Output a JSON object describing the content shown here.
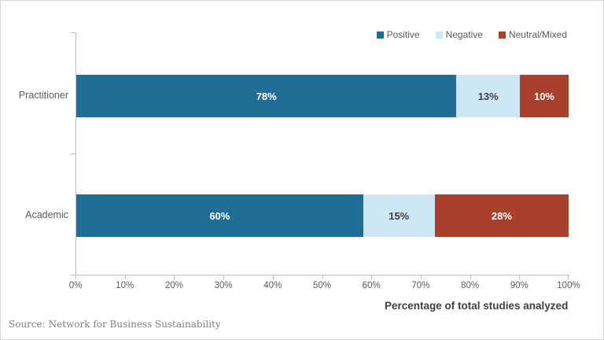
{
  "chart_data": {
    "type": "bar",
    "orientation": "horizontal",
    "stacked": true,
    "normalized_to_100_percent_width": true,
    "categories": [
      "Practitioner",
      "Academic"
    ],
    "series": [
      {
        "name": "Positive",
        "color": "#1E6E96",
        "label_color": "#FFFFFF",
        "values": [
          78,
          60
        ]
      },
      {
        "name": "Negative",
        "color": "#CDE6F4",
        "label_color": "#404040",
        "values": [
          13,
          15
        ]
      },
      {
        "name": "Neutral/Mixed",
        "color": "#A8402C",
        "label_color": "#FFFFFF",
        "values": [
          10,
          28
        ]
      }
    ],
    "value_suffix": "%",
    "data_labels": [
      [
        "78%",
        "13%",
        "10%"
      ],
      [
        "60%",
        "15%",
        "28%"
      ]
    ],
    "xlabel": "Percentage of total studies analyzed",
    "x_ticks": [
      "0%",
      "10%",
      "20%",
      "30%",
      "40%",
      "50%",
      "60%",
      "70%",
      "80%",
      "90%",
      "100%"
    ],
    "xlim": [
      0,
      100
    ],
    "grid": false,
    "legend_entries": [
      "Positive",
      "Negative",
      "Neutral/Mixed"
    ],
    "legend_position": "top-right"
  },
  "source_note": "Source: Network for Business Sustainability",
  "colors": {
    "positive": "#1E6E96",
    "negative": "#CDE6F4",
    "neutral_mixed": "#A8402C",
    "axis_line": "#BFBFBF",
    "tick_text": "#595959",
    "axis_label_text": "#3F3F3F",
    "source_text": "#7F7F7F",
    "background": "#FFFFFF",
    "border": "#D6D6D6"
  }
}
